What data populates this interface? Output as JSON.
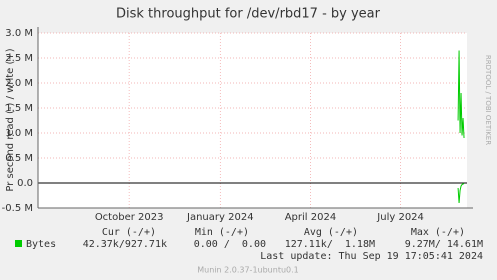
{
  "chart_data": {
    "type": "line",
    "title": "Disk throughput for /dev/rbd17 - by year",
    "y_label": "Pr second read (-) / write (+)",
    "side_label": "RRDTOOL / TOBI OETIKER",
    "xlim": [
      "2023-07-01",
      "2024-09-06"
    ],
    "xticks": [
      {
        "value": "2023-10-01",
        "label": "October 2023"
      },
      {
        "value": "2024-01-01",
        "label": "January 2024"
      },
      {
        "value": "2024-04-01",
        "label": "April 2024"
      },
      {
        "value": "2024-07-01",
        "label": "July 2024"
      }
    ],
    "ylim": [
      -500000,
      3000000
    ],
    "yticks": [
      {
        "value": -500000,
        "label": "-0.5 M"
      },
      {
        "value": 0,
        "label": "0.0"
      },
      {
        "value": 500000,
        "label": "0.5 M"
      },
      {
        "value": 1000000,
        "label": "1.0 M"
      },
      {
        "value": 1500000,
        "label": "1.5 M"
      },
      {
        "value": 2000000,
        "label": "2.0 M"
      },
      {
        "value": 2500000,
        "label": "2.5 M"
      },
      {
        "value": 3000000,
        "label": "3.0 M"
      }
    ],
    "grid": true,
    "series": [
      {
        "name": "Bytes",
        "color": "#00cc00",
        "x": [
          "2024-08-28",
          "2024-08-29",
          "2024-08-30",
          "2024-08-31",
          "2024-09-01",
          "2024-09-02",
          "2024-09-03"
        ],
        "values": [
          1250000,
          2650000,
          1000000,
          1800000,
          950000,
          1300000,
          900000
        ],
        "neg_values": [
          -100000,
          -400000,
          -150000,
          -60000,
          -30000,
          -20000,
          -10000
        ]
      }
    ],
    "legend_table": {
      "headers": [
        "Cur (-/+)",
        "Min (-/+)",
        "Avg (-/+)",
        "Max (-/+)"
      ],
      "values": [
        "42.37k/927.71k",
        "0.00 /  0.00",
        "127.11k/  1.18M",
        "9.27M/ 14.61M"
      ]
    },
    "last_update": "Last update: Thu Sep 19 17:05:41 2024",
    "footer": "Munin 2.0.37-1ubuntu0.1"
  }
}
